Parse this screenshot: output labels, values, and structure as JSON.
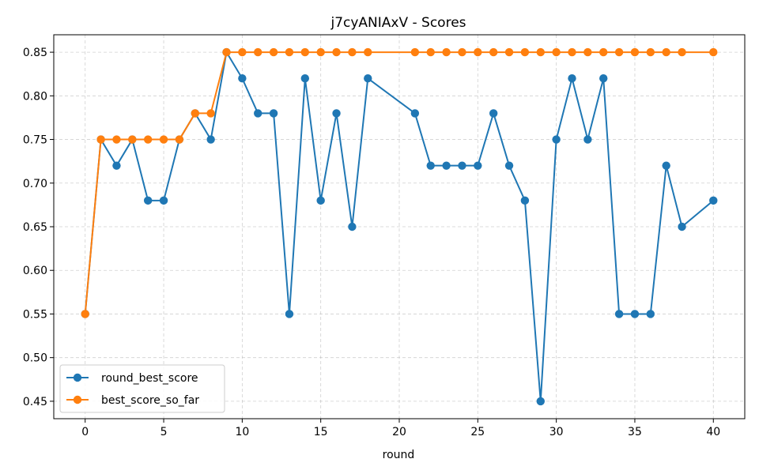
{
  "chart_data": {
    "type": "line",
    "title": "j7cyANIAxV - Scores",
    "xlabel": "round",
    "ylabel": "",
    "xlim": [
      -2,
      42
    ],
    "ylim": [
      0.43,
      0.87
    ],
    "xticks": [
      0,
      5,
      10,
      15,
      20,
      25,
      30,
      35,
      40
    ],
    "yticks": [
      0.45,
      0.5,
      0.55,
      0.6,
      0.65,
      0.7,
      0.75,
      0.8,
      0.85
    ],
    "grid": true,
    "legend_position": "lower-left",
    "series": [
      {
        "name": "round_best_score",
        "color": "#1f77b4",
        "points": [
          [
            0,
            0.55
          ],
          [
            1,
            0.75
          ],
          [
            2,
            0.72
          ],
          [
            3,
            0.75
          ],
          [
            4,
            0.68
          ],
          [
            5,
            0.68
          ],
          [
            6,
            0.75
          ],
          [
            7,
            0.78
          ],
          [
            8,
            0.75
          ],
          [
            9,
            0.85
          ],
          [
            10,
            0.82
          ],
          [
            11,
            0.78
          ],
          [
            12,
            0.78
          ],
          [
            13,
            0.55
          ],
          [
            14,
            0.82
          ],
          [
            15,
            0.68
          ],
          [
            16,
            0.78
          ],
          [
            17,
            0.65
          ],
          [
            18,
            0.82
          ],
          [
            21,
            0.78
          ],
          [
            22,
            0.72
          ],
          [
            23,
            0.72
          ],
          [
            24,
            0.72
          ],
          [
            25,
            0.72
          ],
          [
            26,
            0.78
          ],
          [
            27,
            0.72
          ],
          [
            28,
            0.68
          ],
          [
            29,
            0.45
          ],
          [
            30,
            0.75
          ],
          [
            31,
            0.82
          ],
          [
            32,
            0.75
          ],
          [
            33,
            0.82
          ],
          [
            34,
            0.55
          ],
          [
            35,
            0.55
          ],
          [
            36,
            0.55
          ],
          [
            37,
            0.72
          ],
          [
            38,
            0.65
          ],
          [
            40,
            0.68
          ]
        ]
      },
      {
        "name": "best_score_so_far",
        "color": "#ff7f0e",
        "points": [
          [
            0,
            0.55
          ],
          [
            1,
            0.75
          ],
          [
            2,
            0.75
          ],
          [
            3,
            0.75
          ],
          [
            4,
            0.75
          ],
          [
            5,
            0.75
          ],
          [
            6,
            0.75
          ],
          [
            7,
            0.78
          ],
          [
            8,
            0.78
          ],
          [
            9,
            0.85
          ],
          [
            10,
            0.85
          ],
          [
            11,
            0.85
          ],
          [
            12,
            0.85
          ],
          [
            13,
            0.85
          ],
          [
            14,
            0.85
          ],
          [
            15,
            0.85
          ],
          [
            16,
            0.85
          ],
          [
            17,
            0.85
          ],
          [
            18,
            0.85
          ],
          [
            21,
            0.85
          ],
          [
            22,
            0.85
          ],
          [
            23,
            0.85
          ],
          [
            24,
            0.85
          ],
          [
            25,
            0.85
          ],
          [
            26,
            0.85
          ],
          [
            27,
            0.85
          ],
          [
            28,
            0.85
          ],
          [
            29,
            0.85
          ],
          [
            30,
            0.85
          ],
          [
            31,
            0.85
          ],
          [
            32,
            0.85
          ],
          [
            33,
            0.85
          ],
          [
            34,
            0.85
          ],
          [
            35,
            0.85
          ],
          [
            36,
            0.85
          ],
          [
            37,
            0.85
          ],
          [
            38,
            0.85
          ],
          [
            40,
            0.85
          ]
        ]
      }
    ]
  }
}
